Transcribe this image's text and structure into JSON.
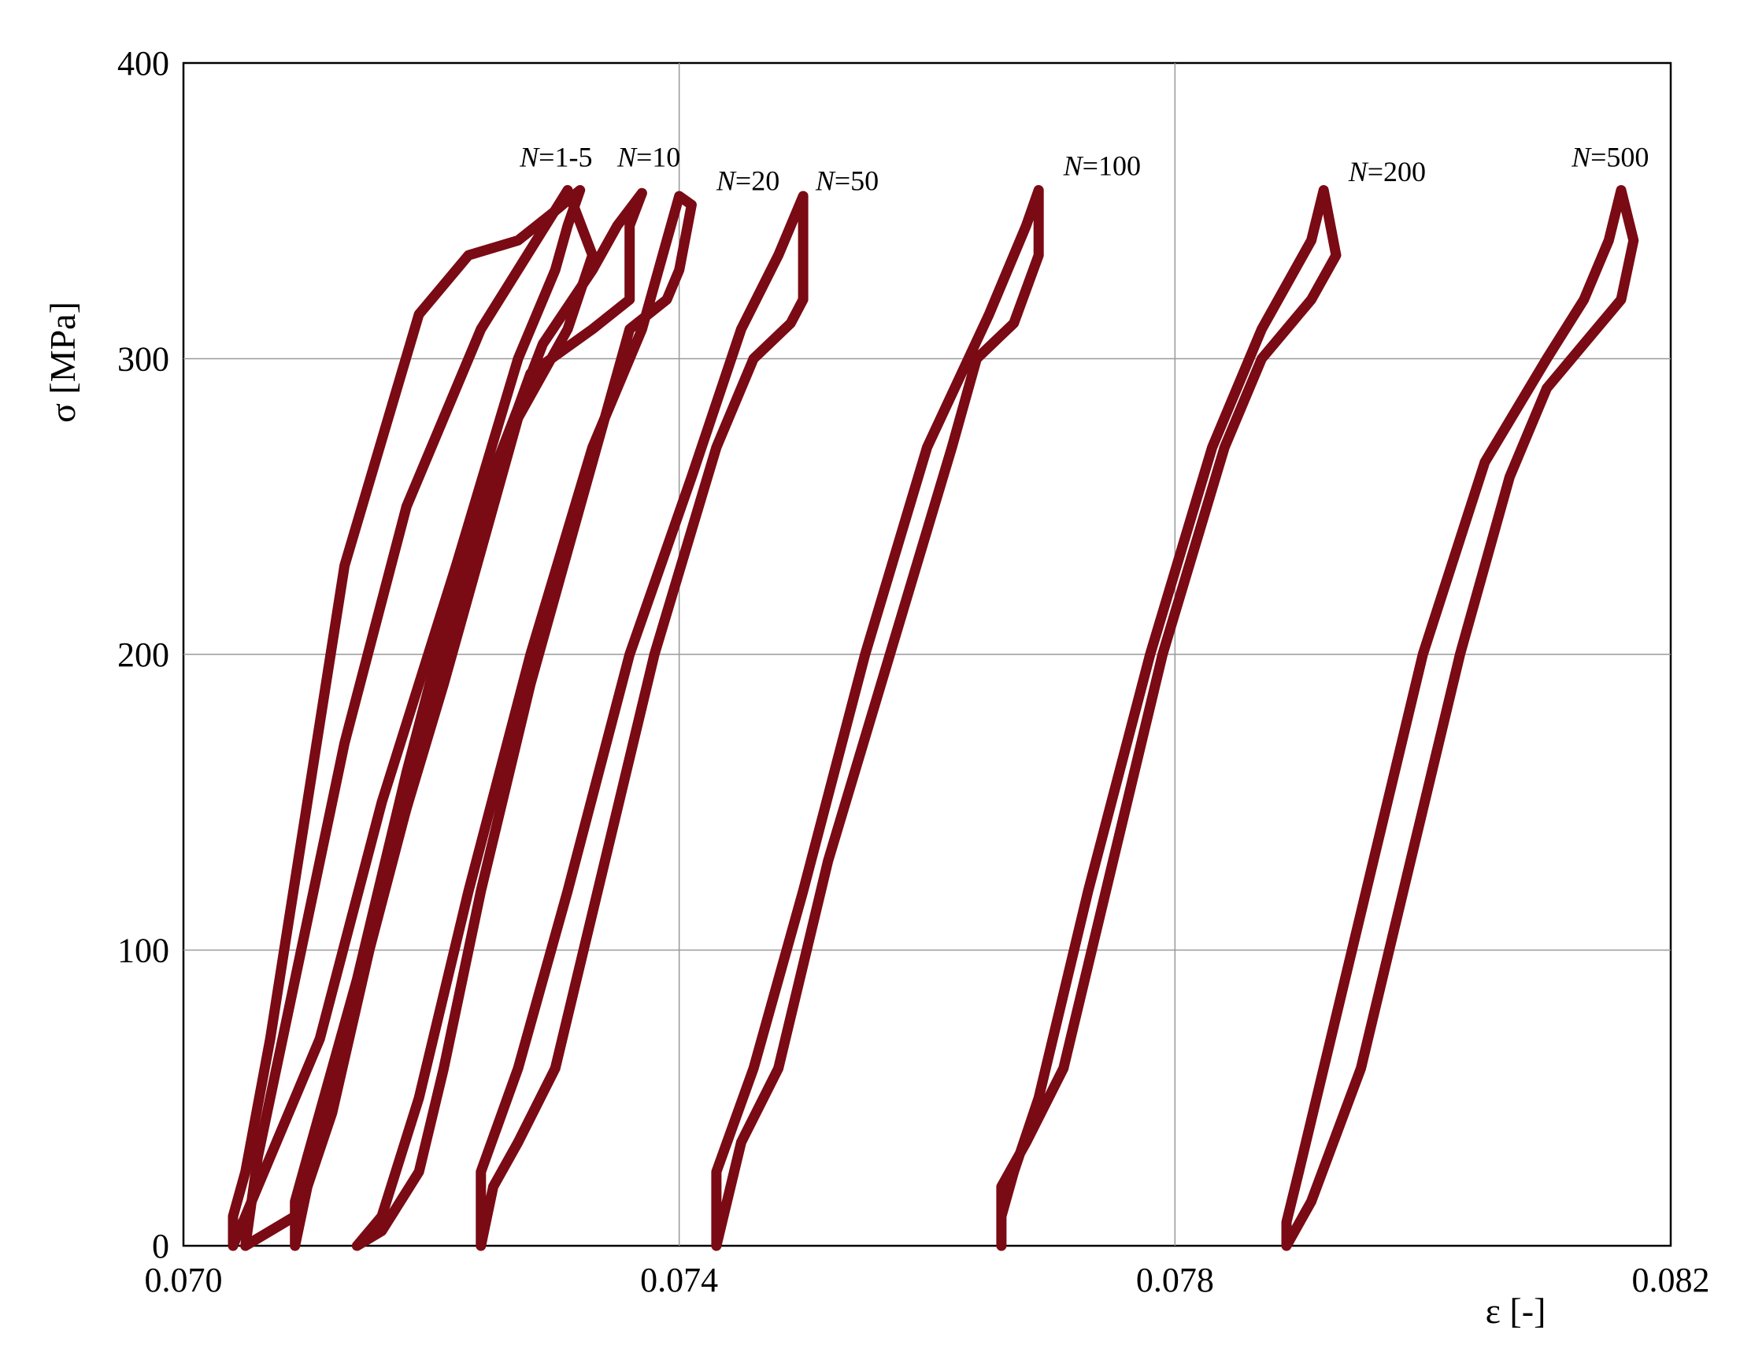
{
  "chart_data": {
    "type": "line",
    "xlabel": "ε [-]",
    "ylabel": "σ  [MPa]",
    "xlim": [
      0.07,
      0.082
    ],
    "ylim": [
      0,
      400
    ],
    "x_ticks": [
      "0.070",
      "0.074",
      "0.078",
      "0.082"
    ],
    "y_ticks": [
      "0",
      "100",
      "200",
      "300",
      "400"
    ],
    "grid": true,
    "color": "#7a0a14",
    "series": [
      {
        "name": "N=1-5",
        "label_at": [
          0.0733,
          365
        ],
        "label_anchor": "end",
        "points": [
          [
            0.0704,
            0
          ],
          [
            0.0704,
            10
          ],
          [
            0.0705,
            25
          ],
          [
            0.0707,
            70
          ],
          [
            0.071,
            150
          ],
          [
            0.0713,
            230
          ],
          [
            0.0719,
            315
          ],
          [
            0.0723,
            335
          ],
          [
            0.0727,
            340
          ],
          [
            0.073,
            350
          ],
          [
            0.0732,
            357
          ],
          [
            0.0731,
            345
          ],
          [
            0.073,
            330
          ],
          [
            0.0727,
            300
          ],
          [
            0.0722,
            230
          ],
          [
            0.0716,
            150
          ],
          [
            0.0711,
            70
          ],
          [
            0.0706,
            20
          ],
          [
            0.0704,
            0
          ]
        ]
      },
      {
        "name": "",
        "label_at": null,
        "label_anchor": "start",
        "points": [
          [
            0.0705,
            0
          ],
          [
            0.0706,
            30
          ],
          [
            0.0709,
            90
          ],
          [
            0.0713,
            170
          ],
          [
            0.0718,
            250
          ],
          [
            0.0724,
            310
          ],
          [
            0.0731,
            357
          ],
          [
            0.0733,
            335
          ],
          [
            0.0731,
            310
          ],
          [
            0.0727,
            280
          ],
          [
            0.0721,
            190
          ],
          [
            0.0716,
            120
          ],
          [
            0.0712,
            50
          ],
          [
            0.0709,
            10
          ],
          [
            0.0705,
            0
          ]
        ]
      },
      {
        "name": "N=10",
        "label_at": [
          0.0735,
          365
        ],
        "label_anchor": "start",
        "points": [
          [
            0.0709,
            0
          ],
          [
            0.0709,
            15
          ],
          [
            0.071,
            30
          ],
          [
            0.0714,
            90
          ],
          [
            0.0718,
            160
          ],
          [
            0.0723,
            240
          ],
          [
            0.0729,
            305
          ],
          [
            0.0733,
            330
          ],
          [
            0.0735,
            345
          ],
          [
            0.0737,
            356
          ],
          [
            0.0736,
            345
          ],
          [
            0.0736,
            320
          ],
          [
            0.0733,
            310
          ],
          [
            0.0728,
            295
          ],
          [
            0.0725,
            260
          ],
          [
            0.072,
            180
          ],
          [
            0.0715,
            100
          ],
          [
            0.0712,
            45
          ],
          [
            0.071,
            20
          ],
          [
            0.0709,
            0
          ]
        ]
      },
      {
        "name": "N=20",
        "label_at": [
          0.0743,
          357
        ],
        "label_anchor": "start",
        "points": [
          [
            0.0714,
            0
          ],
          [
            0.0716,
            10
          ],
          [
            0.0719,
            50
          ],
          [
            0.0723,
            120
          ],
          [
            0.0728,
            200
          ],
          [
            0.0733,
            270
          ],
          [
            0.0737,
            310
          ],
          [
            0.0739,
            340
          ],
          [
            0.074,
            355
          ],
          [
            0.0741,
            352
          ],
          [
            0.074,
            330
          ],
          [
            0.0739,
            320
          ],
          [
            0.0736,
            310
          ],
          [
            0.0735,
            295
          ],
          [
            0.0732,
            250
          ],
          [
            0.0728,
            190
          ],
          [
            0.0724,
            120
          ],
          [
            0.0721,
            60
          ],
          [
            0.0719,
            25
          ],
          [
            0.0716,
            5
          ],
          [
            0.0714,
            0
          ]
        ]
      },
      {
        "name": "N=50",
        "label_at": [
          0.0751,
          357
        ],
        "label_anchor": "start",
        "points": [
          [
            0.0724,
            0
          ],
          [
            0.0724,
            10
          ],
          [
            0.0724,
            25
          ],
          [
            0.0727,
            60
          ],
          [
            0.0731,
            120
          ],
          [
            0.0736,
            200
          ],
          [
            0.0741,
            260
          ],
          [
            0.0745,
            310
          ],
          [
            0.0748,
            335
          ],
          [
            0.075,
            355
          ],
          [
            0.075,
            345
          ],
          [
            0.075,
            320
          ],
          [
            0.0749,
            312
          ],
          [
            0.0746,
            300
          ],
          [
            0.0743,
            270
          ],
          [
            0.0738,
            200
          ],
          [
            0.0734,
            130
          ],
          [
            0.073,
            60
          ],
          [
            0.0727,
            35
          ],
          [
            0.0725,
            20
          ],
          [
            0.0724,
            0
          ]
        ]
      },
      {
        "name": "N=100",
        "label_at": [
          0.0771,
          362
        ],
        "label_anchor": "start",
        "points": [
          [
            0.0743,
            0
          ],
          [
            0.0743,
            10
          ],
          [
            0.0743,
            25
          ],
          [
            0.0746,
            60
          ],
          [
            0.075,
            120
          ],
          [
            0.0755,
            200
          ],
          [
            0.076,
            270
          ],
          [
            0.0765,
            315
          ],
          [
            0.0768,
            345
          ],
          [
            0.0769,
            357
          ],
          [
            0.0769,
            335
          ],
          [
            0.0767,
            312
          ],
          [
            0.0764,
            300
          ],
          [
            0.0762,
            270
          ],
          [
            0.0757,
            200
          ],
          [
            0.0752,
            130
          ],
          [
            0.0748,
            60
          ],
          [
            0.0745,
            35
          ],
          [
            0.0743,
            0
          ]
        ]
      },
      {
        "name": "N=200",
        "label_at": [
          0.0794,
          360
        ],
        "label_anchor": "start",
        "points": [
          [
            0.0766,
            0
          ],
          [
            0.0766,
            10
          ],
          [
            0.0767,
            25
          ],
          [
            0.0769,
            50
          ],
          [
            0.0773,
            120
          ],
          [
            0.0778,
            200
          ],
          [
            0.0783,
            270
          ],
          [
            0.0787,
            310
          ],
          [
            0.0791,
            340
          ],
          [
            0.0792,
            357
          ],
          [
            0.0793,
            335
          ],
          [
            0.0791,
            320
          ],
          [
            0.0787,
            300
          ],
          [
            0.0784,
            270
          ],
          [
            0.0779,
            200
          ],
          [
            0.0775,
            130
          ],
          [
            0.0771,
            60
          ],
          [
            0.0768,
            35
          ],
          [
            0.0766,
            20
          ],
          [
            0.0766,
            0
          ]
        ]
      },
      {
        "name": "N=500",
        "label_at": [
          0.0812,
          365
        ],
        "label_anchor": "start",
        "points": [
          [
            0.0789,
            0
          ],
          [
            0.0789,
            8
          ],
          [
            0.079,
            25
          ],
          [
            0.0792,
            60
          ],
          [
            0.0796,
            130
          ],
          [
            0.08,
            200
          ],
          [
            0.0805,
            265
          ],
          [
            0.081,
            300
          ],
          [
            0.0813,
            320
          ],
          [
            0.0815,
            340
          ],
          [
            0.0816,
            357
          ],
          [
            0.0817,
            340
          ],
          [
            0.0816,
            320
          ],
          [
            0.0813,
            305
          ],
          [
            0.081,
            290
          ],
          [
            0.0807,
            260
          ],
          [
            0.0803,
            200
          ],
          [
            0.0799,
            130
          ],
          [
            0.0795,
            60
          ],
          [
            0.0791,
            15
          ],
          [
            0.0789,
            0
          ]
        ]
      }
    ]
  }
}
